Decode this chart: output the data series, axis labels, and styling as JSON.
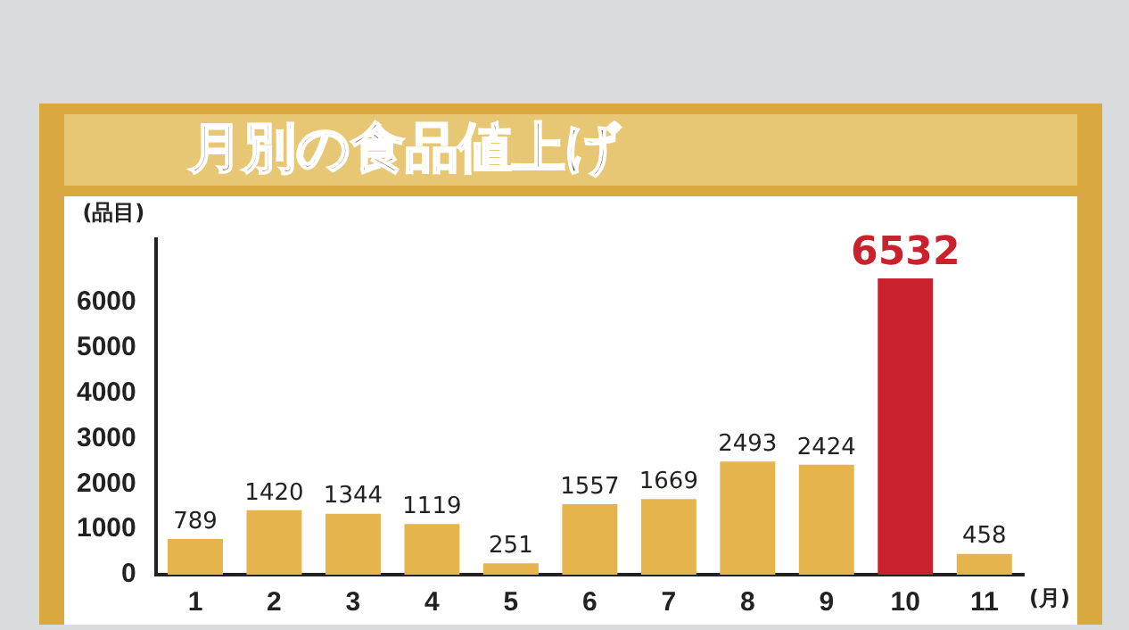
{
  "chart_data": {
    "type": "bar",
    "title": "月別の食品値上げ",
    "ylabel": "(品目)",
    "xlabel": "(月)",
    "categories": [
      "1",
      "2",
      "3",
      "4",
      "5",
      "6",
      "7",
      "8",
      "9",
      "10",
      "11"
    ],
    "values": [
      789,
      1420,
      1344,
      1119,
      251,
      1557,
      1669,
      2493,
      2424,
      6532,
      458
    ],
    "colors": [
      "#e6b44c",
      "#e6b44c",
      "#e6b44c",
      "#e6b44c",
      "#e6b44c",
      "#e6b44c",
      "#e6b44c",
      "#e6b44c",
      "#e6b44c",
      "#c9222c",
      "#e6b44c"
    ],
    "ylim": [
      0,
      7400
    ],
    "yticks": [
      0,
      1000,
      2000,
      3000,
      4000,
      5000,
      6000
    ],
    "grid": false,
    "data_labels": true,
    "legend": false
  }
}
